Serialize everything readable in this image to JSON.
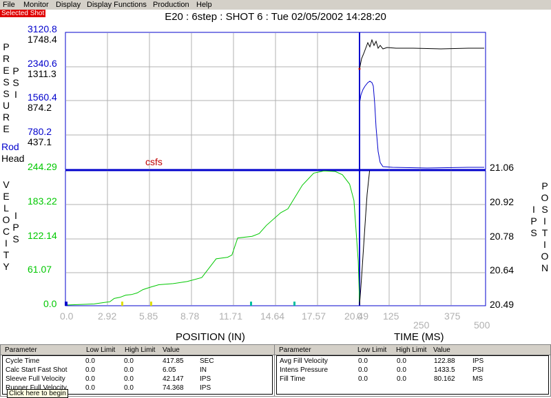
{
  "menu": [
    "File",
    "Monitor",
    "Display",
    "Display Functions",
    "Production",
    "Help"
  ],
  "selected_shot": "Selected Shot",
  "title": "E20 : 6step : SHOT 6 : Tue   02/05/2002   14:28:20",
  "colors": {
    "blue": "#0000cc",
    "black": "#000000",
    "green": "#00c800",
    "red": "#c00000",
    "yellow": "#e0e000",
    "teal": "#00c0a0"
  },
  "pressure": {
    "label_letters": [
      "P",
      "R",
      "E",
      "S",
      "S",
      "U",
      "R",
      "E"
    ],
    "psi_letters": [
      "P",
      "S",
      "I"
    ],
    "rod_ticks": [
      "3120.8",
      "2340.6",
      "1560.4",
      "780.2"
    ],
    "head_ticks": [
      "1748.4",
      "1311.3",
      "874.2",
      "437.1"
    ],
    "rod_label": "Rod",
    "head_label": "Head",
    "annotation": "csfs"
  },
  "velocity": {
    "label_letters": [
      "V",
      "E",
      "L",
      "O",
      "C",
      "I",
      "T",
      "Y"
    ],
    "ips_letters": [
      "I",
      "P",
      "S"
    ],
    "ticks": [
      "244.29",
      "183.22",
      "122.14",
      "61.07",
      "0.0"
    ]
  },
  "position_axis": {
    "label_letters": [
      "P",
      "O",
      "S",
      "I",
      "T",
      "I",
      "O",
      "N"
    ],
    "ticks": [
      "21.06",
      "20.92",
      "20.78",
      "20.64",
      "20.49"
    ]
  },
  "x_position": {
    "ticks": [
      "0.0",
      "2.92",
      "5.85",
      "8.78",
      "11.71",
      "14.64",
      "17.57",
      "20.49"
    ],
    "label": "POSITION (IN)"
  },
  "x_time": {
    "ticks": [
      "0",
      "125",
      "250",
      "375",
      "500"
    ],
    "label": "TIME (MS)"
  },
  "chart_data": {
    "type": "line",
    "velocity_series": {
      "name": "Velocity",
      "x": [
        0.0,
        2.0,
        2.8,
        3.1,
        3.4,
        3.8,
        4.2,
        4.6,
        5.0,
        5.4,
        5.85,
        6.5,
        7.5,
        8.5,
        9.5,
        10.5,
        11.3,
        11.6,
        12.0,
        13.0,
        13.5,
        14.0,
        15.0,
        15.5,
        16.5,
        17.3,
        18.0,
        18.8,
        19.3,
        19.8,
        20.1,
        20.4,
        20.49
      ],
      "y": [
        0,
        2,
        5,
        6,
        12,
        14,
        18,
        19,
        22,
        28,
        32,
        37,
        39,
        43,
        50,
        84,
        87,
        91,
        122,
        125,
        130,
        145,
        168,
        175,
        218,
        240,
        244,
        243,
        237,
        220,
        190,
        80,
        5
      ]
    },
    "position_series": {
      "name": "Position",
      "x": [
        0,
        5,
        10,
        15,
        20,
        25,
        30,
        40
      ],
      "y": [
        20.49,
        20.56,
        20.64,
        20.72,
        20.8,
        20.88,
        20.96,
        21.06
      ]
    }
  },
  "left_panel": {
    "headers": [
      "Parameter",
      "Low Limit",
      "High Limit",
      "Value"
    ],
    "rows": [
      [
        "Cycle Time",
        "0.0",
        "0.0",
        "417.85",
        "SEC"
      ],
      [
        "Calc Start Fast Shot",
        "0.0",
        "0.0",
        "6.05",
        "IN"
      ],
      [
        "Sleeve Full Velocity",
        "0.0",
        "0.0",
        "42.147",
        "IPS"
      ],
      [
        "Runner Full Velocity",
        "0.0",
        "0.0",
        "74.368",
        "IPS"
      ]
    ]
  },
  "right_panel": {
    "headers": [
      "Parameter",
      "Low Limit",
      "High Limit",
      "Value"
    ],
    "rows": [
      [
        "Avg Fill Velocity",
        "0.0",
        "0.0",
        "122.88",
        "IPS"
      ],
      [
        "Intens Pressure",
        "0.0",
        "0.0",
        "1433.5",
        "PSI"
      ],
      [
        "Fill Time",
        "0.0",
        "0.0",
        "80.162",
        "MS"
      ]
    ]
  },
  "tooltip": "Click here to begin"
}
